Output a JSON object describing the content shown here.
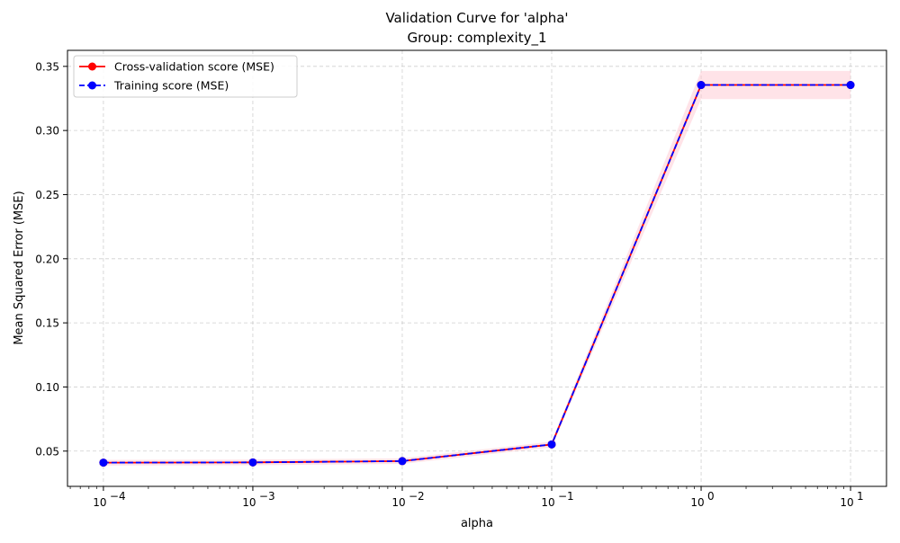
{
  "chart_data": {
    "type": "line",
    "title_lines": [
      "Validation Curve for 'alpha'",
      "Group: complexity_1"
    ],
    "xlabel": "alpha",
    "ylabel": "Mean Squared Error (MSE)",
    "x_scale": "log",
    "x": [
      0.0001,
      0.001,
      0.01,
      0.1,
      1,
      10
    ],
    "x_tick_labels": [
      {
        "base": "10",
        "exp": "−4",
        "value": 0.0001
      },
      {
        "base": "10",
        "exp": "−3",
        "value": 0.001
      },
      {
        "base": "10",
        "exp": "−2",
        "value": 0.01
      },
      {
        "base": "10",
        "exp": "−1",
        "value": 0.1
      },
      {
        "base": "10",
        "exp": "0",
        "value": 1
      },
      {
        "base": "10",
        "exp": "1",
        "value": 10
      }
    ],
    "xlim": [
      5.75e-05,
      17.4
    ],
    "ylim": [
      0.0225,
      0.3625
    ],
    "y_ticks": [
      0.05,
      0.1,
      0.15,
      0.2,
      0.25,
      0.3,
      0.35
    ],
    "y_tick_labels": [
      "0.05",
      "0.10",
      "0.15",
      "0.20",
      "0.25",
      "0.30",
      "0.35"
    ],
    "grid": true,
    "legend_position": "top-left",
    "series": [
      {
        "name": "Cross-validation score (MSE)",
        "values": [
          0.041,
          0.0412,
          0.0422,
          0.0552,
          0.3355,
          0.3355
        ],
        "band_upper": [
          0.0432,
          0.0434,
          0.0444,
          0.0574,
          0.3465,
          0.3465
        ],
        "band_lower": [
          0.0388,
          0.039,
          0.04,
          0.053,
          0.3245,
          0.3245
        ],
        "color": "#ff0000",
        "band_color": "#ffc0cb",
        "line_style": "solid"
      },
      {
        "name": "Training score (MSE)",
        "values": [
          0.041,
          0.0412,
          0.0422,
          0.0552,
          0.3355,
          0.3355
        ],
        "color": "#0000ff",
        "line_style": "dashed"
      }
    ]
  }
}
